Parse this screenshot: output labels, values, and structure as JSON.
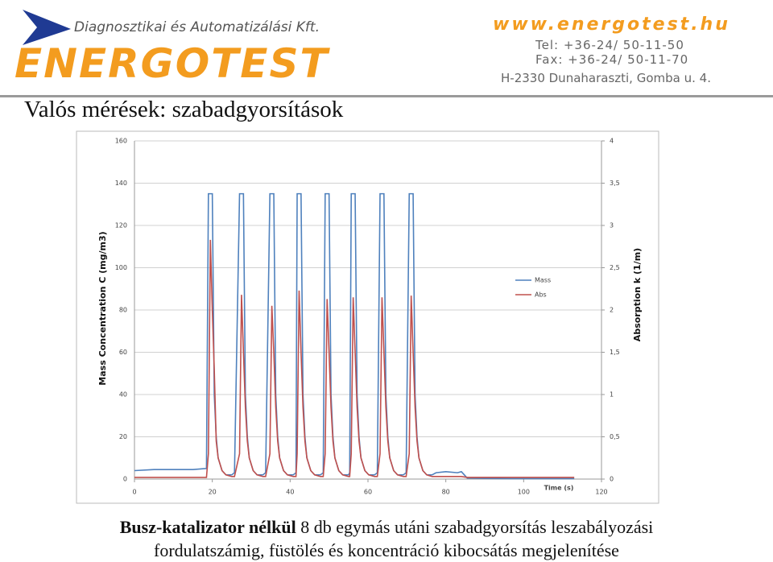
{
  "header": {
    "company": "Diagnosztikai és Automatizálási Kft.",
    "logo": "ENERGOTEST",
    "web": "www.energotest.hu",
    "tel": "Tel: +36-24/ 50-11-50",
    "fax": "Fax: +36-24/ 50-11-70",
    "address": "H-2330 Dunaharaszti, Gomba u. 4."
  },
  "title": "Valós mérések: szabadgyorsítások",
  "caption": {
    "bold": "Busz-katalizator nélkül",
    "line1": "8 db egymás utáni szabadgyorsítás leszabályozási",
    "line2": "fordulatszámig, füstölés és koncentráció kibocsátás megjelenítése"
  },
  "chart_data": {
    "type": "line",
    "x_label": "Time (s)",
    "y_label": "Mass Concentration C (mg/m3)",
    "y2_label": "Absorption k (1/m)",
    "xlim": [
      0,
      120
    ],
    "xticks": [
      0,
      20,
      40,
      60,
      80,
      100,
      120
    ],
    "ylim": [
      0,
      160
    ],
    "yticks": [
      0,
      20,
      40,
      60,
      80,
      100,
      120,
      140,
      160
    ],
    "y2lim": [
      0,
      4
    ],
    "y2ticks": [
      0,
      {
        "value": 0.5,
        "label": "0,5"
      },
      1,
      {
        "value": 1.5,
        "label": "1,5"
      },
      2,
      {
        "value": 2.5,
        "label": "2,5"
      },
      3,
      {
        "value": 3.5,
        "label": "3,5"
      },
      4
    ],
    "grid": true,
    "legend": "right",
    "x": [
      0,
      5,
      10,
      15,
      18.5,
      19,
      19.5,
      20,
      20.5,
      21,
      21.5,
      22.5,
      23.5,
      25,
      25.7,
      27,
      27.5,
      28,
      28.5,
      29,
      29.5,
      30.5,
      31.5,
      33,
      33.7,
      34.8,
      35.3,
      35.8,
      36.3,
      36.8,
      37.3,
      38.3,
      39.3,
      40.8,
      41.5,
      41.8,
      42.3,
      42.8,
      43.3,
      43.8,
      44.3,
      45.3,
      46.3,
      47.8,
      48.5,
      49,
      49.5,
      50,
      50.5,
      51,
      51.5,
      52.5,
      53.5,
      55,
      55.3,
      55.7,
      56.2,
      56.7,
      57.2,
      57.7,
      58.2,
      59.2,
      60.2,
      61.7,
      62.4,
      63.1,
      63.6,
      64.1,
      64.6,
      65.1,
      65.6,
      66.6,
      67.6,
      69.1,
      69.8,
      70.6,
      71.1,
      71.6,
      72.1,
      72.6,
      73.1,
      74.1,
      75.1,
      76.5,
      77.5,
      80,
      83,
      84,
      85.5,
      90,
      100,
      110,
      113
    ],
    "series": [
      {
        "name": "Mass",
        "color": "#4f81bd",
        "values": [
          4,
          4.5,
          4.5,
          4.5,
          5,
          135,
          135,
          135,
          40,
          20,
          10,
          4,
          2,
          2,
          3,
          135,
          135,
          135,
          40,
          20,
          10,
          4,
          2,
          2,
          3,
          135,
          135,
          135,
          40,
          20,
          10,
          4,
          2,
          2,
          3,
          135,
          135,
          135,
          40,
          20,
          10,
          4,
          2,
          2,
          3,
          135,
          135,
          135,
          40,
          20,
          10,
          4,
          2,
          2,
          3,
          135,
          135,
          135,
          40,
          20,
          10,
          4,
          2,
          2,
          3,
          135,
          135,
          135,
          40,
          20,
          10,
          4,
          2,
          2,
          3,
          135,
          135,
          135,
          40,
          20,
          10,
          4,
          2,
          2,
          3,
          3.5,
          3,
          3.5,
          0.5,
          0.3,
          0.2,
          0.2,
          0.2
        ]
      },
      {
        "name": "Abs",
        "color": "#c0504d",
        "axis": "y2",
        "values": [
          0.02,
          0.02,
          0.02,
          0.02,
          0.02,
          0.3,
          2.83,
          2.0,
          1.3,
          0.45,
          0.25,
          0.1,
          0.05,
          0.03,
          0.03,
          0.3,
          2.18,
          1.5,
          0.85,
          0.45,
          0.25,
          0.1,
          0.05,
          0.03,
          0.03,
          0.3,
          2.05,
          1.5,
          0.85,
          0.45,
          0.25,
          0.1,
          0.05,
          0.03,
          0.03,
          0.3,
          2.23,
          1.5,
          0.85,
          0.45,
          0.25,
          0.1,
          0.05,
          0.03,
          0.03,
          0.3,
          2.13,
          1.5,
          0.85,
          0.45,
          0.25,
          0.1,
          0.05,
          0.03,
          0.03,
          0.3,
          2.15,
          1.5,
          0.85,
          0.45,
          0.25,
          0.1,
          0.05,
          0.03,
          0.03,
          0.3,
          2.15,
          1.5,
          0.85,
          0.45,
          0.25,
          0.1,
          0.05,
          0.03,
          0.03,
          0.3,
          2.17,
          1.5,
          0.85,
          0.45,
          0.25,
          0.1,
          0.05,
          0.03,
          0.03,
          0.03,
          0.03,
          0.03,
          0.02,
          0.02,
          0.02,
          0.02,
          0.02
        ]
      }
    ]
  }
}
